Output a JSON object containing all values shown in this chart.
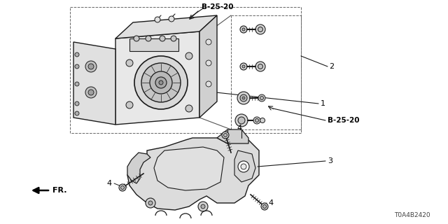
{
  "background_color": "#ffffff",
  "diagram_id": "T0A4B2420",
  "line_color": "#1a1a1a",
  "text_color": "#000000",
  "gray_fill": "#c8c8c8",
  "light_gray": "#e0e0e0",
  "dark_gray": "#888888",
  "labels": {
    "B25_20_top": "B-25-20",
    "B25_20_right": "B-25-20",
    "num_1": "1",
    "num_2": "2",
    "num_3": "3",
    "num_4a": "4",
    "num_4b": "4",
    "num_4c": "4",
    "fr": "FR."
  }
}
